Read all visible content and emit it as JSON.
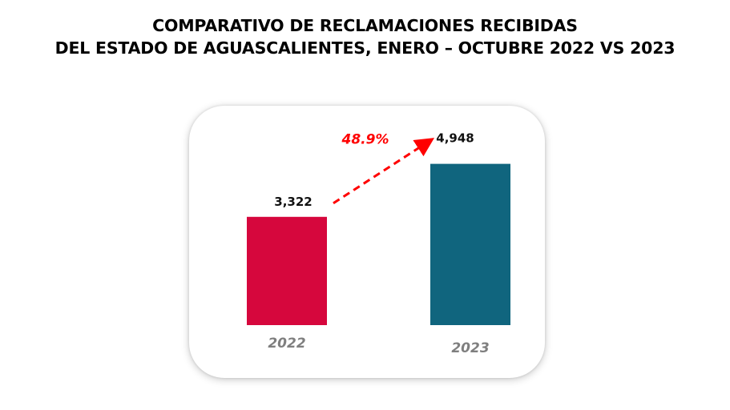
{
  "title": {
    "line1": "COMPARATIVO DE RECLAMACIONES RECIBIDAS",
    "line2": "DEL ESTADO DE AGUASCALIENTES, ENERO – OCTUBRE 2022 VS 2023"
  },
  "chart_data": {
    "type": "bar",
    "title": "COMPARATIVO DE RECLAMACIONES RECIBIDAS DEL ESTADO DE AGUASCALIENTES, ENERO – OCTUBRE 2022 VS 2023",
    "categories": [
      "2022",
      "2023"
    ],
    "values": [
      3322,
      4948
    ],
    "value_labels": [
      "3,322",
      "4,948"
    ],
    "colors": [
      "#d6073d",
      "#10657e"
    ],
    "growth_label": "48.9%",
    "growth_color": "#ff0000",
    "xlabel": "",
    "ylabel": "",
    "ylim": [
      0,
      5700
    ],
    "grid": false
  }
}
